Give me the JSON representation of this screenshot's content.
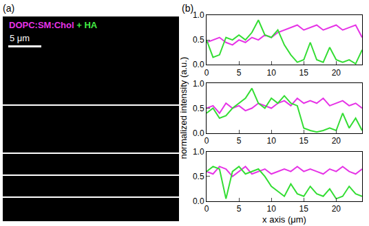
{
  "panel_a": {
    "label": "(a)",
    "overlay_text": [
      {
        "text": "DOPC:SM:Chol",
        "color": "#e633e6"
      },
      {
        "text": "+ HA",
        "color": "#44ee44"
      }
    ],
    "scale_bar": "5 μm"
  },
  "chart_data": {
    "type": "line",
    "panel_label": "(b)",
    "x_label": "x axis (μm)",
    "y_label": "normalized intensity (a.u.)",
    "xlim": [
      0,
      24
    ],
    "xticks": [
      0,
      5,
      10,
      15,
      20
    ],
    "ylim": [
      0,
      1
    ],
    "yticks": [
      {
        "value": 0,
        "label": "0.0"
      },
      {
        "value": 0.5,
        "label": "0.5"
      },
      {
        "value": 1,
        "label": "1.0"
      }
    ],
    "grid": false,
    "x": [
      0,
      1,
      2,
      3,
      4,
      5,
      6,
      7,
      8,
      9,
      10,
      11,
      12,
      13,
      14,
      15,
      16,
      17,
      18,
      19,
      20,
      21,
      22,
      23,
      24
    ],
    "panels": [
      {
        "series": [
          {
            "color": "#e633e6",
            "values": [
              0.45,
              0.5,
              0.55,
              0.45,
              0.4,
              0.5,
              0.45,
              0.55,
              0.5,
              0.6,
              0.55,
              0.65,
              0.7,
              0.75,
              0.8,
              0.7,
              0.75,
              0.8,
              0.7,
              0.75,
              0.8,
              0.7,
              0.75,
              0.8,
              0.55
            ]
          },
          {
            "color": "#33dd33",
            "values": [
              0.5,
              0.15,
              0.2,
              0.55,
              0.5,
              0.6,
              0.5,
              0.65,
              0.9,
              0.6,
              0.55,
              0.7,
              0.4,
              0.2,
              0.05,
              0.1,
              0.45,
              0.1,
              0.05,
              0.35,
              0.1,
              0.05,
              0.1,
              0.02,
              0.3
            ]
          }
        ]
      },
      {
        "series": [
          {
            "color": "#e633e6",
            "values": [
              0.5,
              0.55,
              0.4,
              0.6,
              0.5,
              0.55,
              0.45,
              0.5,
              0.6,
              0.55,
              0.5,
              0.6,
              0.65,
              0.55,
              0.7,
              0.6,
              0.65,
              0.6,
              0.7,
              0.55,
              0.6,
              0.65,
              0.55,
              0.6,
              0.5
            ]
          },
          {
            "color": "#33dd33",
            "values": [
              0.4,
              0.5,
              0.3,
              0.35,
              0.5,
              0.6,
              0.7,
              0.9,
              0.6,
              0.5,
              0.7,
              0.6,
              0.75,
              0.6,
              0.55,
              0.1,
              0.05,
              0.02,
              0.05,
              0.1,
              0.05,
              0.4,
              0.1,
              0.3,
              0.05
            ]
          }
        ]
      },
      {
        "series": [
          {
            "color": "#e633e6",
            "values": [
              0.6,
              0.55,
              0.7,
              0.65,
              0.5,
              0.6,
              0.7,
              0.55,
              0.6,
              0.65,
              0.55,
              0.6,
              0.65,
              0.6,
              0.7,
              0.6,
              0.65,
              0.6,
              0.55,
              0.65,
              0.6,
              0.7,
              0.6,
              0.55,
              0.65
            ]
          },
          {
            "color": "#33dd33",
            "values": [
              0.6,
              0.7,
              0.65,
              0.05,
              0.6,
              0.7,
              0.55,
              0.6,
              0.65,
              0.5,
              0.3,
              0.2,
              0.1,
              0.35,
              0.15,
              0.1,
              0.3,
              0.15,
              0.1,
              0.25,
              0.05,
              0.1,
              0.3,
              0.15,
              0.1
            ]
          }
        ]
      }
    ]
  }
}
